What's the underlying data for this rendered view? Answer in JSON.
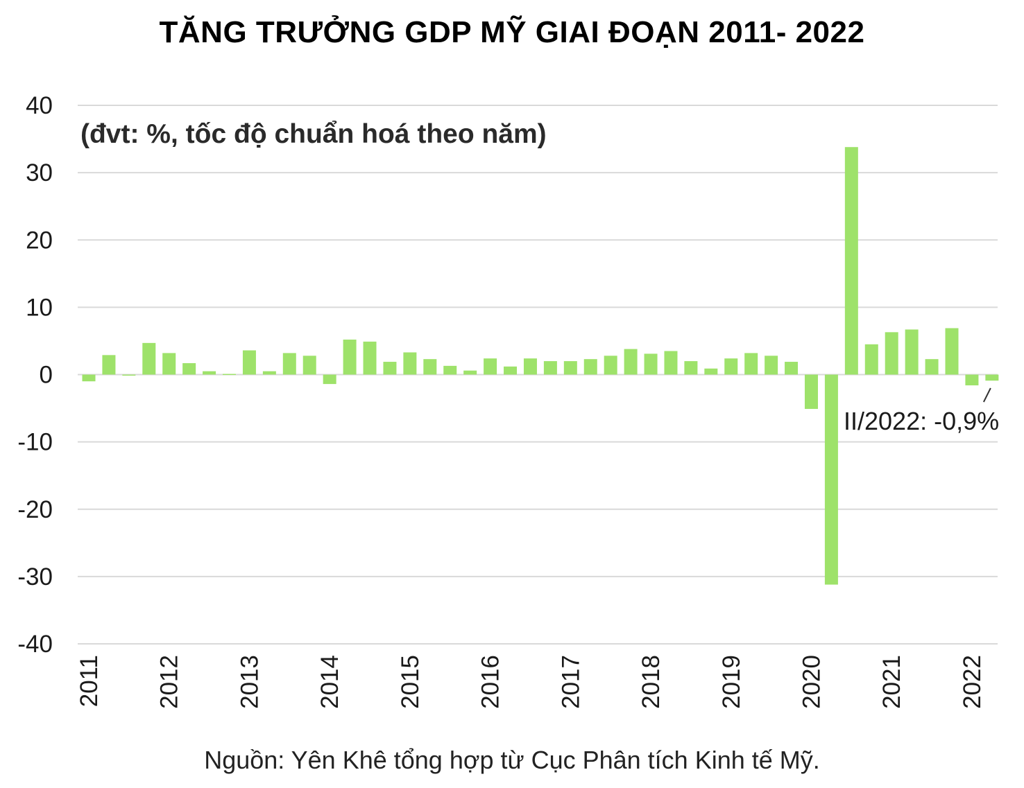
{
  "title": "TĂNG TRƯỞNG GDP MỸ GIAI ĐOẠN 2011- 2022",
  "source": "Nguồn: Yên Khê tổng hợp từ Cục Phân tích Kinh tế Mỹ.",
  "colors": {
    "bar": "#9ee26a",
    "grid": "#d9d9d9",
    "text": "#1a1a1a"
  },
  "chart_data": {
    "type": "bar",
    "title": "TĂNG TRƯỞNG GDP MỸ GIAI ĐOẠN 2011- 2022",
    "unit_note": "(đvt: %, tốc độ chuẩn hoá theo năm)",
    "ylim": [
      -40,
      40
    ],
    "yticks": [
      "40",
      "30",
      "20",
      "10",
      "0",
      "-10",
      "-20",
      "-30",
      "-40"
    ],
    "year_labels": [
      "2011",
      "2012",
      "2013",
      "2014",
      "2015",
      "2016",
      "2017",
      "2018",
      "2019",
      "2020",
      "2021",
      "2022"
    ],
    "grid": true,
    "series": [
      {
        "values": [
          -1.0,
          2.9,
          -0.1,
          4.7,
          3.2,
          1.7,
          0.5,
          0.1,
          3.6,
          0.5,
          3.2,
          2.8,
          -1.4,
          5.2,
          4.9,
          1.9,
          3.3,
          2.3,
          1.3,
          0.6,
          2.4,
          1.2,
          2.4,
          2.0,
          2.0,
          2.3,
          2.8,
          3.8,
          3.1,
          3.5,
          2.0,
          0.9,
          2.4,
          3.2,
          2.8,
          1.9,
          -5.1,
          -31.2,
          33.8,
          4.5,
          6.3,
          6.7,
          2.3,
          6.9,
          -1.6,
          -0.9
        ]
      }
    ],
    "annotation": "II/2022: -0,9%"
  }
}
